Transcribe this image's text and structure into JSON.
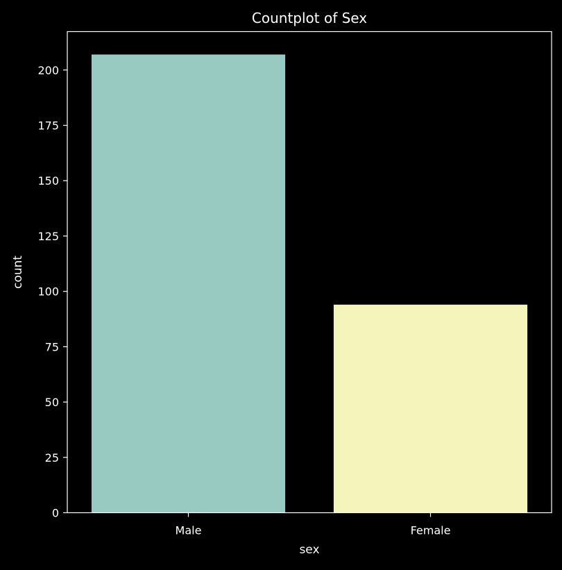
{
  "colors": {
    "background": "#000000",
    "axis": "#ffffff",
    "text": "#ffffff"
  },
  "chart_data": {
    "type": "bar",
    "title": "Countplot of Sex",
    "xlabel": "sex",
    "ylabel": "count",
    "categories": [
      "Male",
      "Female"
    ],
    "values": [
      207,
      94
    ],
    "bar_colors": [
      "#99cac2",
      "#f5f5bb"
    ],
    "ylim": [
      0,
      217.35
    ],
    "yticks": [
      0,
      25,
      50,
      75,
      100,
      125,
      150,
      175,
      200
    ],
    "ytick_labels": [
      "0",
      "25",
      "50",
      "75",
      "100",
      "125",
      "150",
      "175",
      "200"
    ],
    "grid": false,
    "legend": "none"
  }
}
